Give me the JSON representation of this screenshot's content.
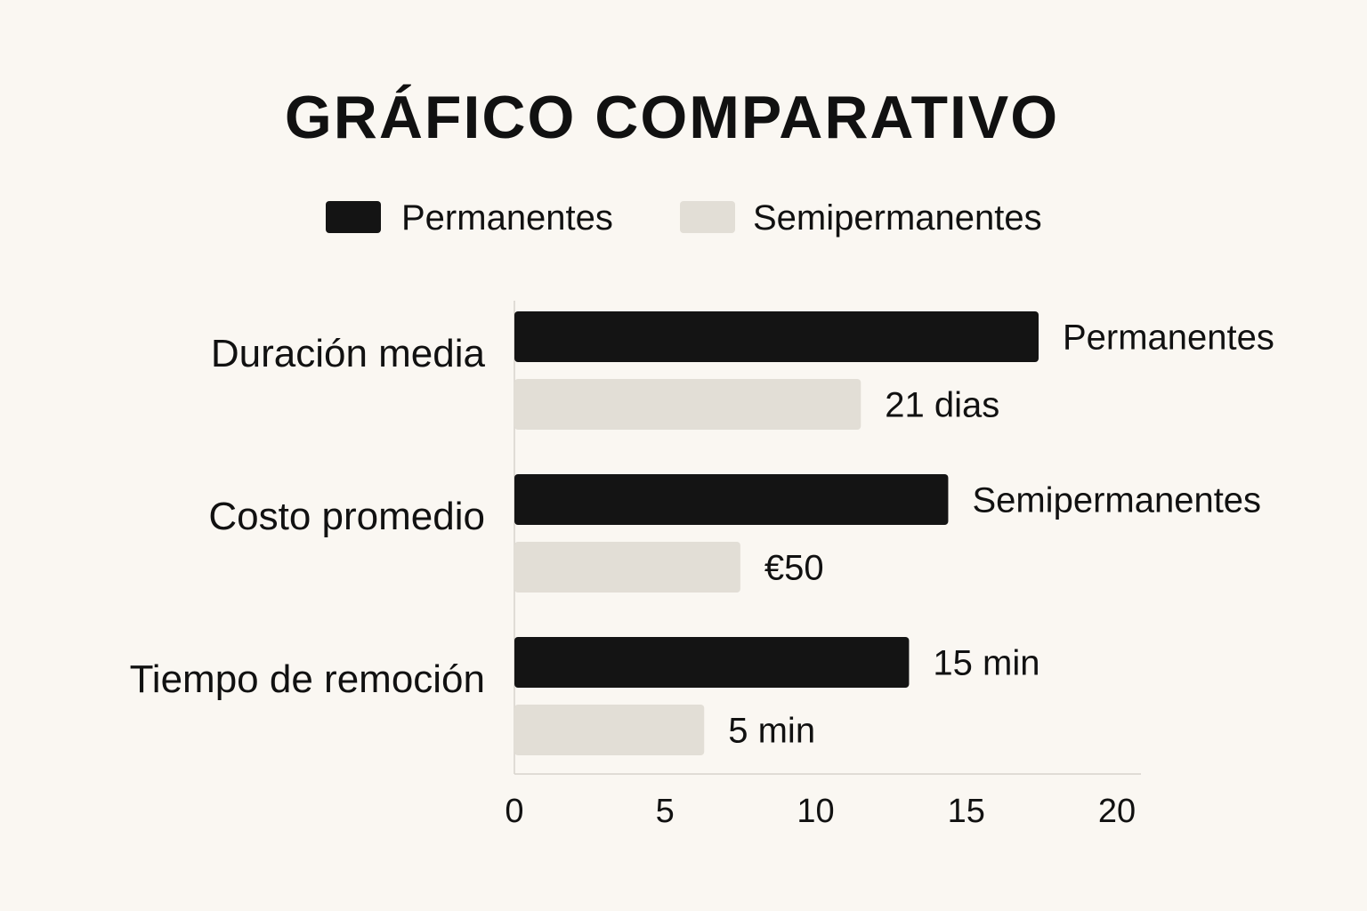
{
  "chart_data": {
    "type": "bar",
    "orientation": "horizontal",
    "title": "GRÁFICO COMPARATIVO",
    "legend_position": "top",
    "categories": [
      "Duración media",
      "Costo promedio",
      "Tiempo de remoción"
    ],
    "series": [
      {
        "name": "Permanentes",
        "color": "#141414",
        "values": [
          17.4,
          14.4,
          13.1
        ],
        "data_labels": [
          "Permanentes",
          "Semipermanentes",
          "15 min"
        ]
      },
      {
        "name": "Semipermanentes",
        "color": "#e2ded6",
        "values": [
          11.5,
          7.5,
          6.3
        ],
        "data_labels": [
          "21 dias",
          "€50",
          "5 min"
        ]
      }
    ],
    "xlim": [
      0,
      20
    ],
    "xticks": [
      "0",
      "5",
      "10",
      "15",
      "20"
    ],
    "grid": false,
    "background": "#faf7f2"
  }
}
